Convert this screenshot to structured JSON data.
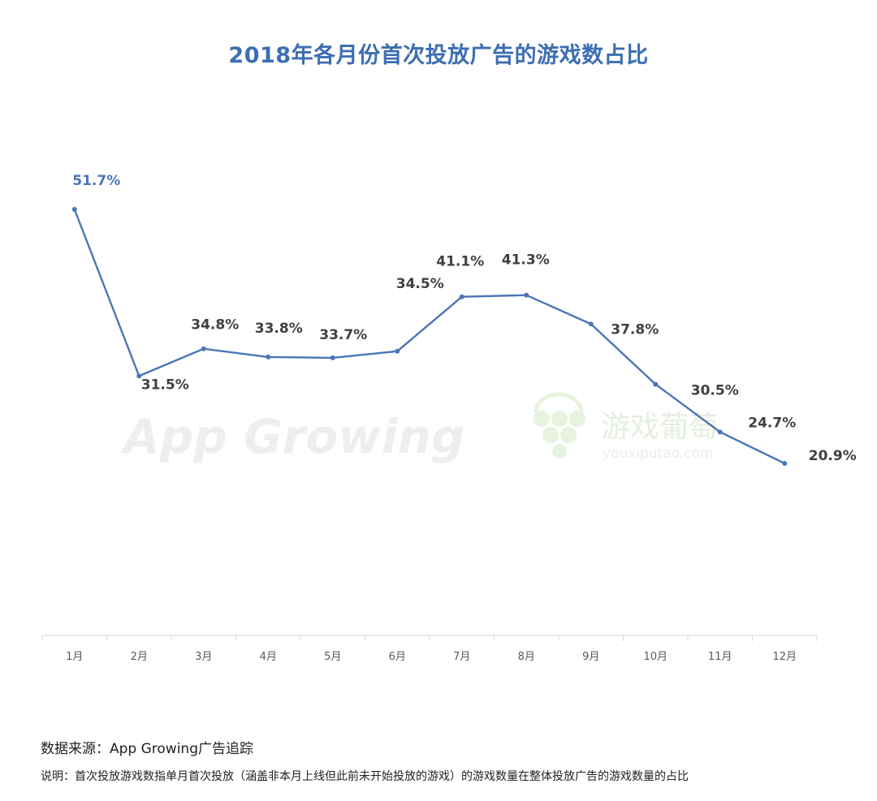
{
  "chart_data": {
    "type": "line",
    "title": "2018年各月份首次投放广告的游戏数占比",
    "categories": [
      "1月",
      "2月",
      "3月",
      "4月",
      "5月",
      "6月",
      "7月",
      "8月",
      "9月",
      "10月",
      "11月",
      "12月"
    ],
    "series": [
      {
        "values": [
          51.7,
          31.5,
          34.8,
          33.8,
          33.7,
          34.5,
          41.1,
          41.3,
          37.8,
          30.5,
          24.7,
          20.9
        ],
        "labels": [
          "51.7%",
          "31.5%",
          "34.8%",
          "33.8%",
          "33.7%",
          "34.5%",
          "41.1%",
          "41.3%",
          "37.8%",
          "30.5%",
          "24.7%",
          "20.9%"
        ]
      }
    ],
    "ylim": [
      0,
      70
    ],
    "grid": false,
    "line_color": "#4a76b6",
    "first_label_color": "#4a76b6",
    "label_color": "#404040"
  },
  "watermarks": {
    "appgrowing": "App Growing",
    "youxiputao_cn": "游戏葡萄",
    "youxiputao_url": "youxiputao.com"
  },
  "footer": {
    "source": "数据来源：App Growing广告追踪",
    "note": "说明：首次投放游戏数指单月首次投放（涵盖非本月上线但此前未开始投放的游戏）的游戏数量在整体投放广告的游戏数量的占比"
  }
}
